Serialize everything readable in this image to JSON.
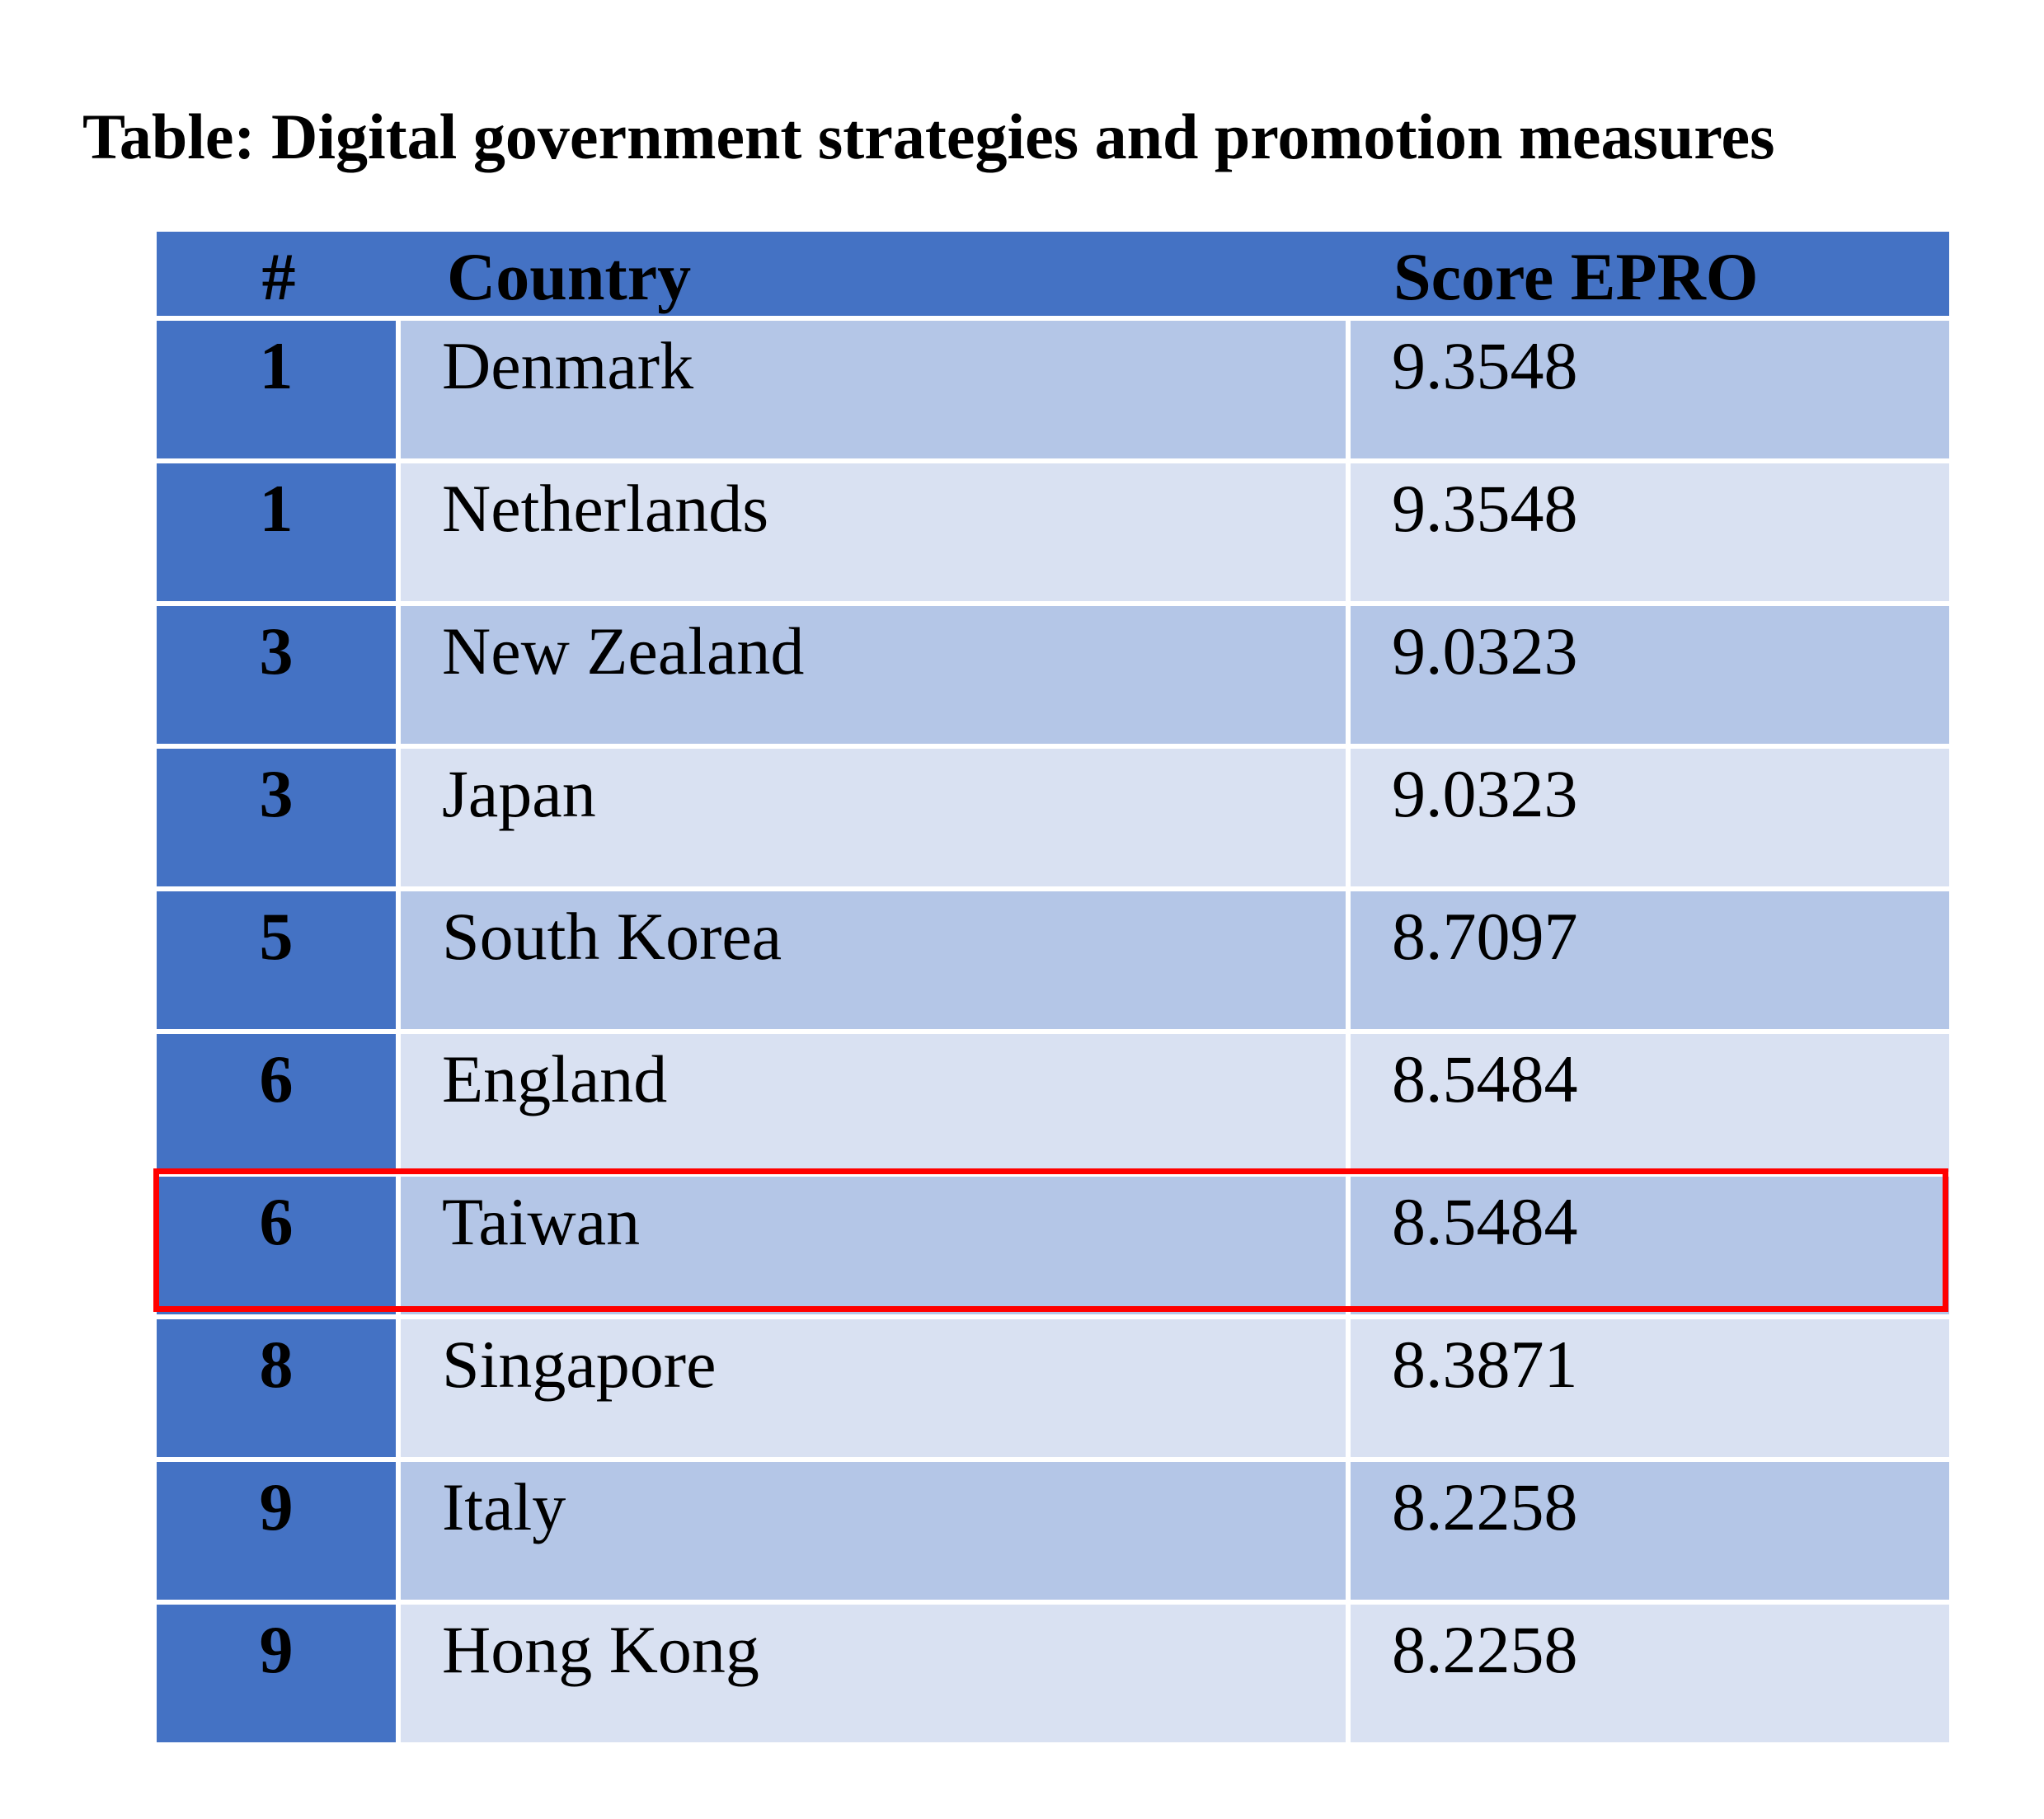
{
  "title": "Table: Digital government strategies and promotion measures",
  "table": {
    "headers": {
      "rank": "#",
      "country": "Country",
      "score": "Score  EPRO"
    },
    "rows": [
      {
        "rank": "1",
        "country": "Denmark",
        "score": "9.3548"
      },
      {
        "rank": "1",
        "country": "Netherlands",
        "score": "9.3548"
      },
      {
        "rank": "3",
        "country": "New Zealand",
        "score": "9.0323"
      },
      {
        "rank": "3",
        "country": "Japan",
        "score": "9.0323"
      },
      {
        "rank": "5",
        "country": "South Korea",
        "score": "8.7097"
      },
      {
        "rank": "6",
        "country": "England",
        "score": "8.5484"
      },
      {
        "rank": "6",
        "country": "Taiwan",
        "score": "8.5484"
      },
      {
        "rank": "8",
        "country": "Singapore",
        "score": "8.3871"
      },
      {
        "rank": "9",
        "country": "Italy",
        "score": "8.2258"
      },
      {
        "rank": "9",
        "country": "Hong Kong",
        "score": "8.2258"
      }
    ]
  },
  "colors": {
    "header_bg": "#4472c4",
    "row_odd_bg": "#b4c6e7",
    "row_even_bg": "#d9e1f2",
    "highlight_border": "#ff0000"
  },
  "highlighted_row_index": 6
}
